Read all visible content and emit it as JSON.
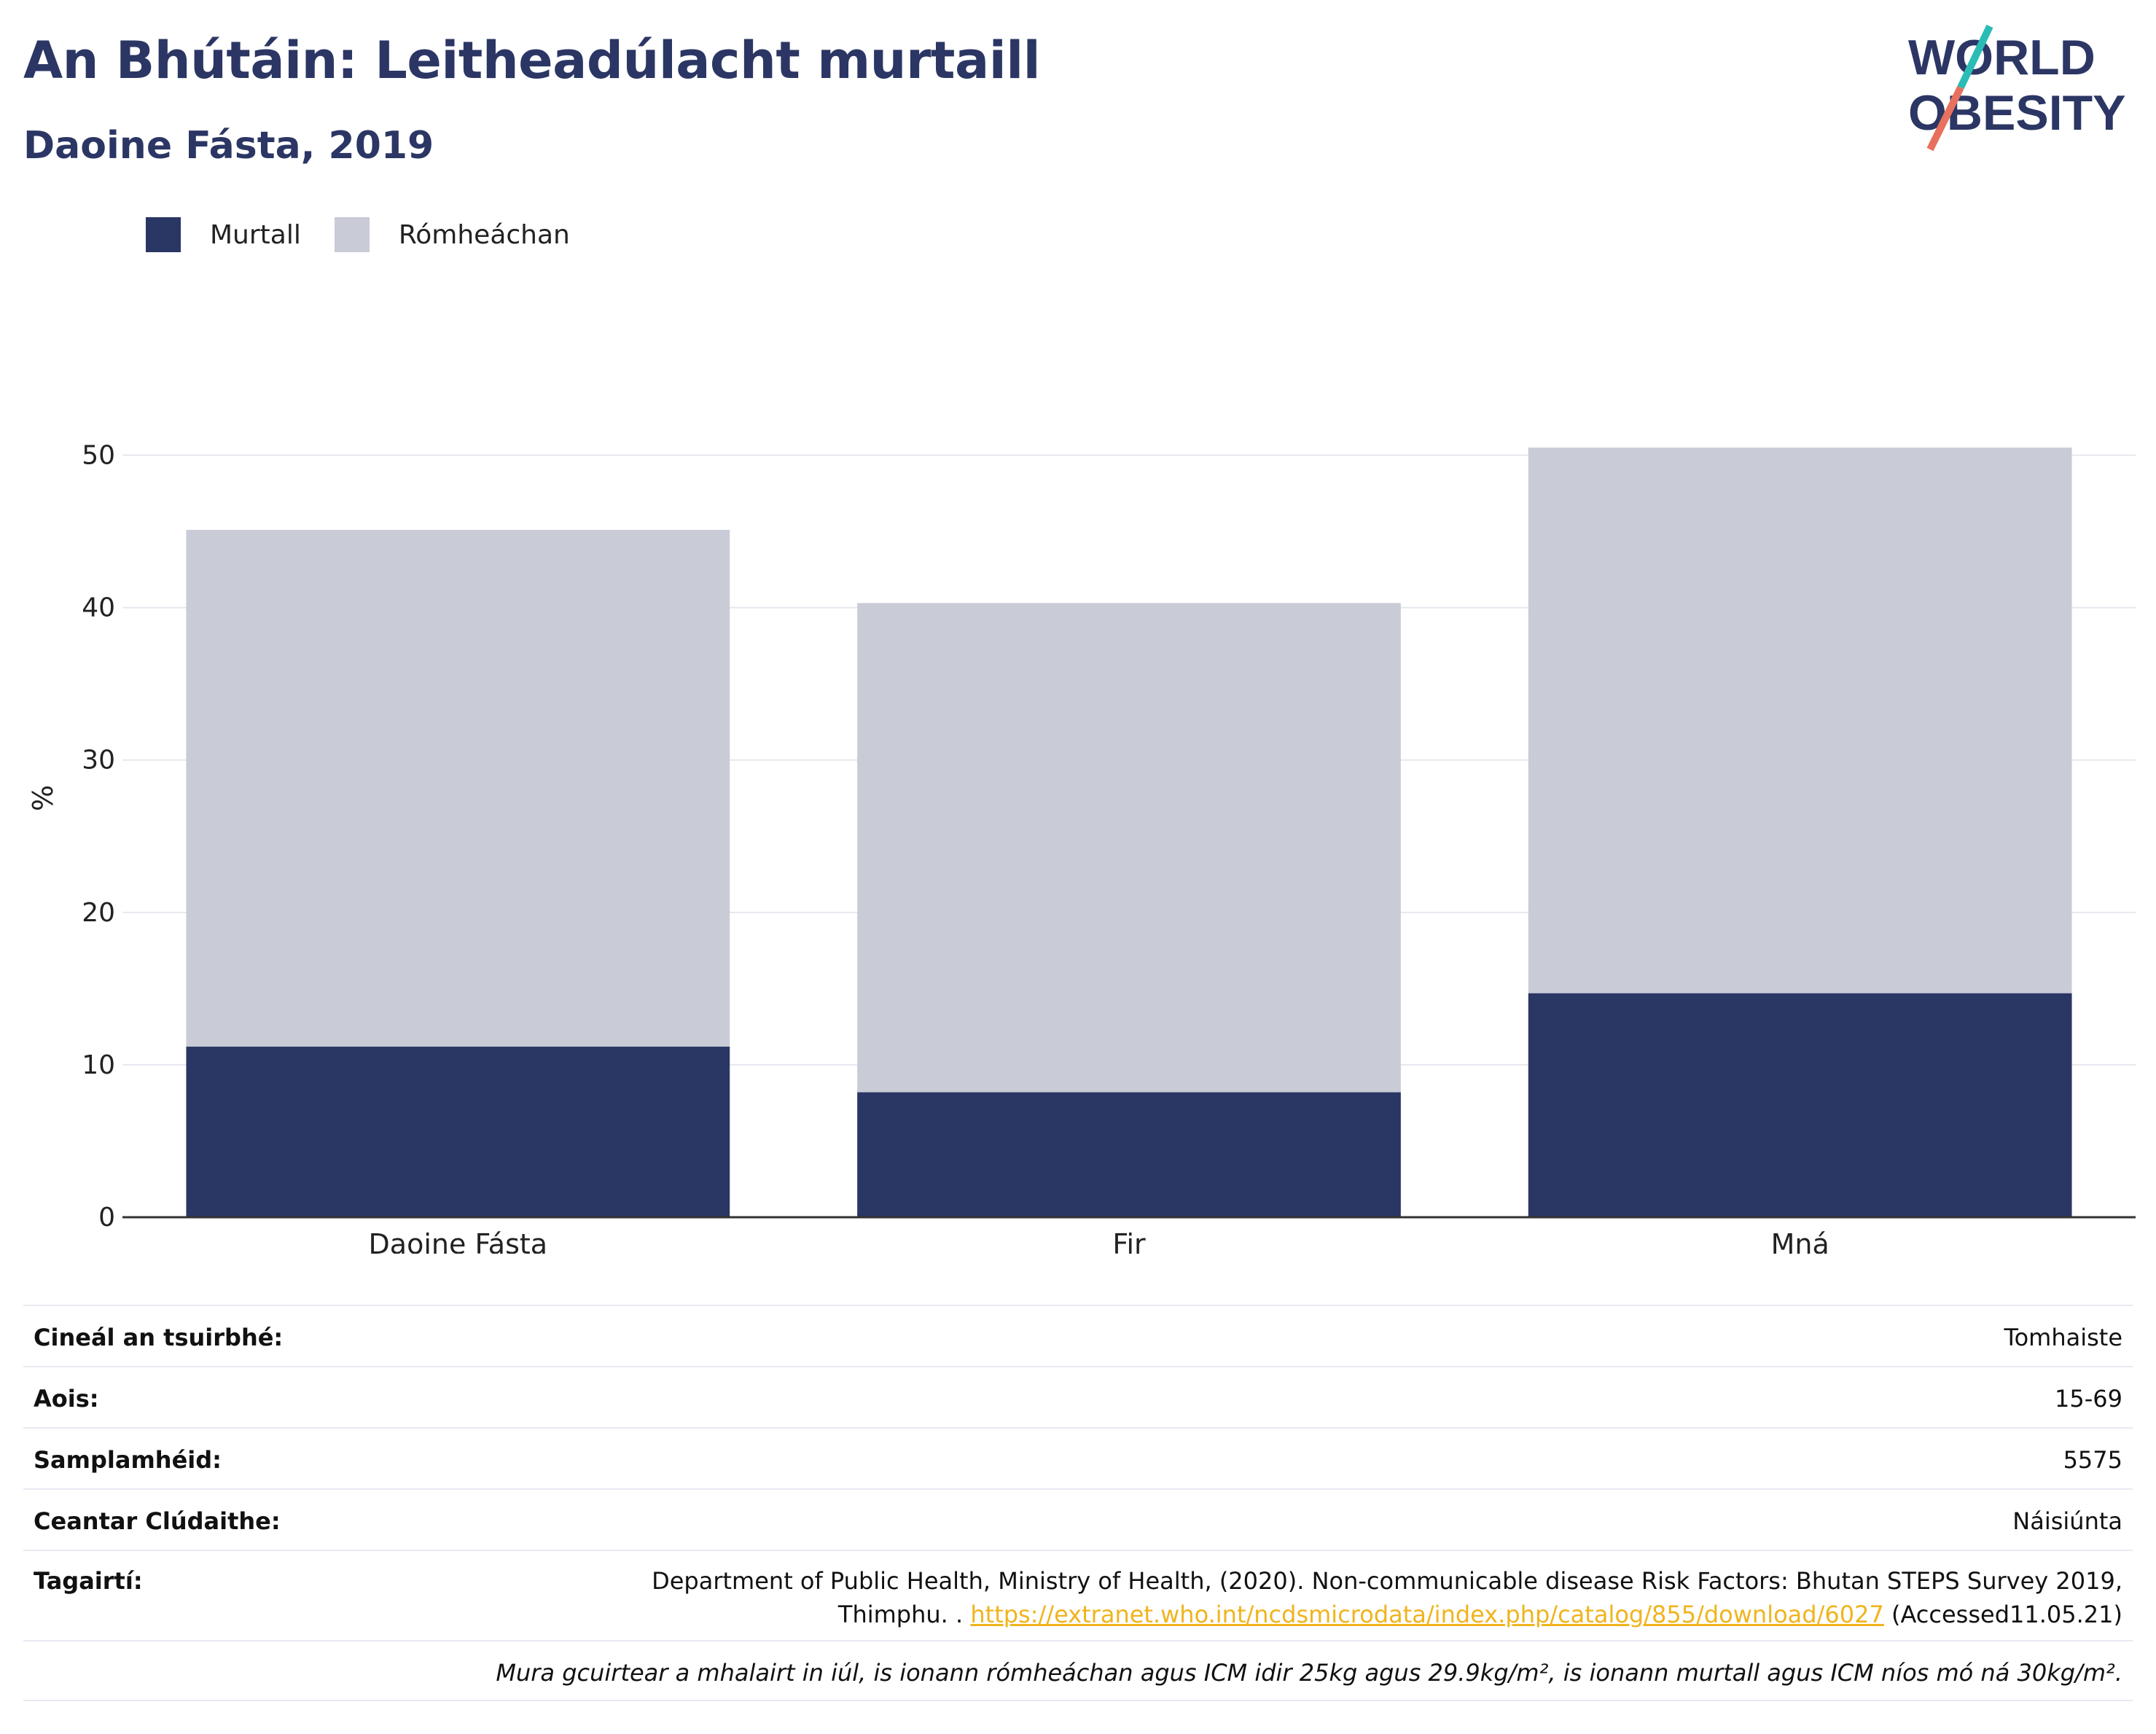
{
  "header": {
    "title": "An Bhútáin: Leitheadúlacht murtaill",
    "subtitle": "Daoine Fásta, 2019",
    "logo_line1": "WORLD",
    "logo_line2": "OBESITY"
  },
  "legend": [
    {
      "label": "Murtall",
      "color": "#2a3664"
    },
    {
      "label": "Rómheáchan",
      "color": "#c9cbd7"
    }
  ],
  "chart_data": {
    "type": "bar",
    "stacked": true,
    "categories": [
      "Daoine Fásta",
      "Fir",
      "Mná"
    ],
    "series": [
      {
        "name": "Murtall",
        "values": [
          11.2,
          8.2,
          14.7
        ],
        "color": "#2a3664"
      },
      {
        "name": "Rómheáchan",
        "values": [
          33.9,
          32.1,
          35.8
        ],
        "color": "#c9cbd7"
      }
    ],
    "ylabel": "%",
    "xlabel": "",
    "ylim": [
      0,
      55
    ],
    "yticks": [
      0,
      10,
      20,
      30,
      40,
      50
    ],
    "grid": true,
    "legend_position": "top-left"
  },
  "meta": {
    "survey_type_label": "Cineál an tsuirbhé:",
    "survey_type_value": "Tomhaiste",
    "age_label": "Aois:",
    "age_value": "15-69",
    "sample_label": "Samplamhéid:",
    "sample_value": "5575",
    "area_label": "Ceantar Clúdaithe:",
    "area_value": "Náisiúnta",
    "ref_label": "Tagairtí:",
    "ref_line1": "Department of Public Health, Ministry of Health, (2020). Non-communicable disease Risk Factors: Bhutan STEPS Survey 2019,",
    "ref_line2_prefix": "Thimphu. . ",
    "ref_link": "https://extranet.who.int/ncdsmicrodata/index.php/catalog/855/download/6027",
    "ref_suffix": " (Accessed11.05.21)",
    "footnote": "Mura gcuirtear a mhalairt in iúl, is ionann rómheáchan agus ICM idir 25kg agus 29.9kg/m², is ionann murtall agus ICM níos mó ná 30kg/m²."
  }
}
